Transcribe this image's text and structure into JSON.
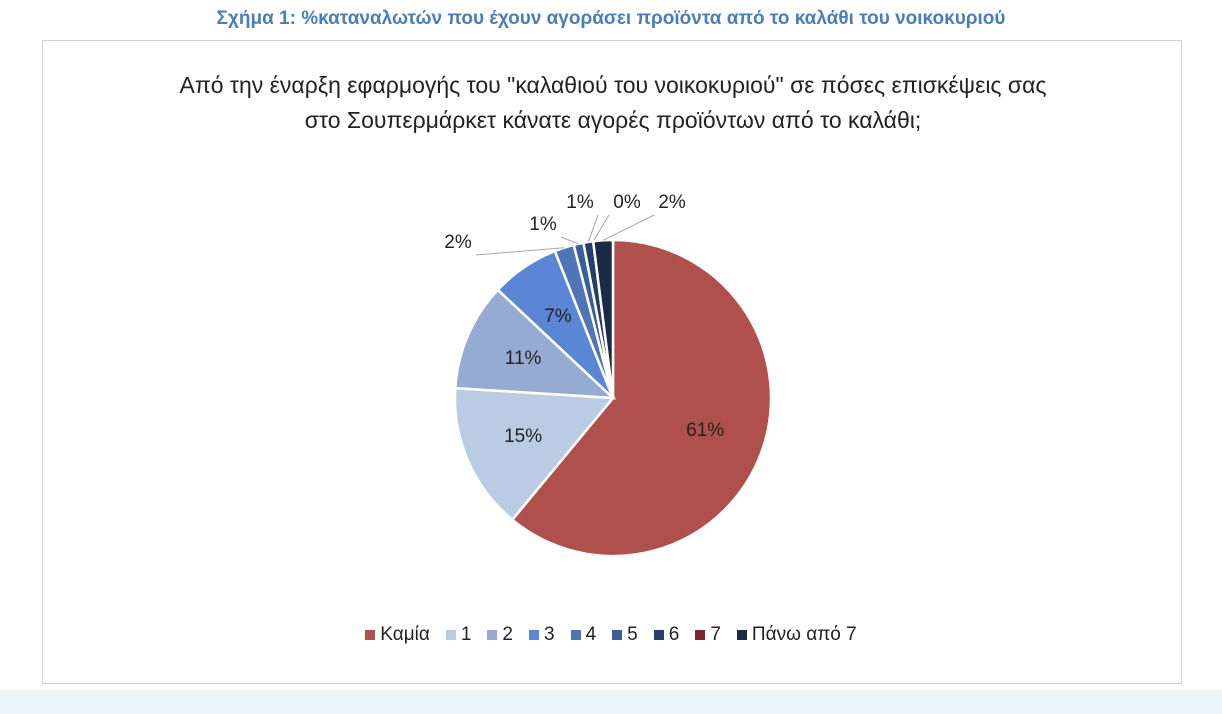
{
  "chart_data": {
    "type": "pie",
    "caption": "Σχήμα 1: %καταναλωτών που έχουν αγοράσει προϊόντα από το καλάθι του νοικοκυριού",
    "title": "Από την έναρξη εφαρμογής του \"καλαθιού του νοικοκυριού\" σε πόσες επισκέψεις σας στο Σουπερμάρκετ κάνατε αγορές προϊόντων από το καλάθι;",
    "categories": [
      "Καμία",
      "1",
      "2",
      "3",
      "4",
      "5",
      "6",
      "7",
      "Πάνω από 7"
    ],
    "values": [
      61,
      15,
      11,
      7,
      2,
      1,
      1,
      0,
      2
    ],
    "value_labels": [
      "61%",
      "15%",
      "11%",
      "7%",
      "2%",
      "1%",
      "1%",
      "0%",
      "2%"
    ],
    "colors": [
      "#b0504c",
      "#b9cce4",
      "#95abd1",
      "#5b86d6",
      "#4f74b8",
      "#3b5d9a",
      "#253f6c",
      "#7b2a27",
      "#1c2a4a"
    ]
  }
}
